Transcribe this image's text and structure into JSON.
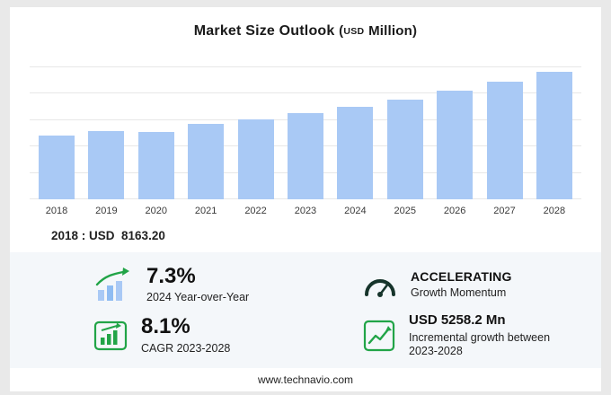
{
  "header": {
    "title": "Market Size Outlook",
    "unit_open": "(",
    "unit_currency": "USD",
    "unit_name": "Million",
    "unit_close": ")"
  },
  "chart_data": {
    "type": "bar",
    "title": "Market Size Outlook (USD Million)",
    "categories": [
      "2018",
      "2019",
      "2020",
      "2021",
      "2022",
      "2023",
      "2024",
      "2025",
      "2026",
      "2027",
      "2028"
    ],
    "values": [
      8163.2,
      8750,
      8600,
      9600,
      10250,
      11042,
      11848,
      12750,
      13850,
      15050,
      16300
    ],
    "ylabel": "USD Million",
    "ylim": [
      0,
      17000
    ],
    "grid": true,
    "legend": "none",
    "bar_color": "#a9c9f5"
  },
  "base_year_note": "2018 : USD  8163.20",
  "stats": {
    "yoy": {
      "value": "7.3%",
      "label": "2024 Year-over-Year",
      "icon": "bar-growth-icon"
    },
    "momentum": {
      "value": "ACCELERATING",
      "label": "Growth Momentum",
      "icon": "speedometer-icon"
    },
    "cagr": {
      "value": "8.1%",
      "label": "CAGR 2023-2028",
      "icon": "chart-box-icon"
    },
    "incremental": {
      "value": "USD 5258.2 Mn",
      "label": "Incremental growth between 2023-2028",
      "icon": "trend-box-icon"
    }
  },
  "footer": {
    "url": "www.technavio.com"
  },
  "colors": {
    "bar": "#a9c9f5",
    "accent_green": "#21a447",
    "gauge_dark": "#16342b",
    "panel_bg": "#f4f7fa"
  }
}
